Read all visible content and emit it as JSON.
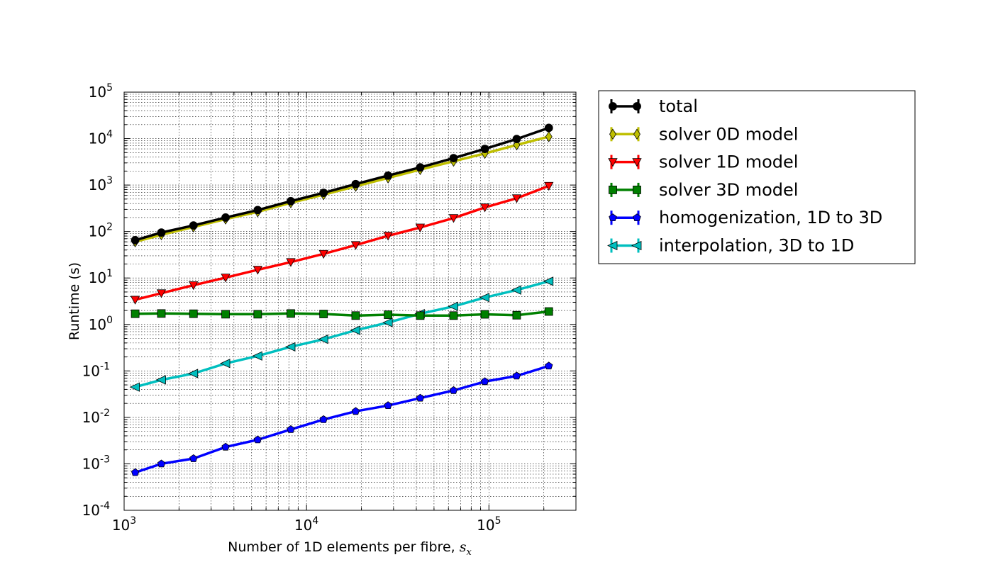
{
  "chart_data": {
    "type": "line",
    "title": "",
    "xlabel": "Number of 1D elements per fibre, ",
    "xlabel_math": "s",
    "xlabel_math_sub": "x",
    "ylabel": "Runtime (s)",
    "x_scale": "log",
    "y_scale": "log",
    "xlim": [
      1000,
      300000
    ],
    "ylim": [
      0.0001,
      100000
    ],
    "grid": true,
    "legend_position": "outside-right-top",
    "x_ticks": [
      {
        "value": 1000,
        "base": "10",
        "exp": "3"
      },
      {
        "value": 10000,
        "base": "10",
        "exp": "4"
      },
      {
        "value": 100000,
        "base": "10",
        "exp": "5"
      }
    ],
    "y_ticks": [
      {
        "value": 100000,
        "base": "10",
        "exp": "5"
      },
      {
        "value": 10000,
        "base": "10",
        "exp": "4"
      },
      {
        "value": 1000,
        "base": "10",
        "exp": "3"
      },
      {
        "value": 100,
        "base": "10",
        "exp": "2"
      },
      {
        "value": 10,
        "base": "10",
        "exp": "1"
      },
      {
        "value": 1,
        "base": "10",
        "exp": "0"
      },
      {
        "value": 0.1,
        "base": "10",
        "exp": "-1"
      },
      {
        "value": 0.01,
        "base": "10",
        "exp": "-2"
      },
      {
        "value": 0.001,
        "base": "10",
        "exp": "-3"
      },
      {
        "value": 0.0001,
        "base": "10",
        "exp": "-4"
      }
    ],
    "x": [
      1150,
      1600,
      2400,
      3600,
      5400,
      8200,
      12400,
      18600,
      28000,
      42000,
      64000,
      95000,
      142000,
      213000
    ],
    "series": [
      {
        "name": "total",
        "color": "#000000",
        "marker": "circle",
        "values": [
          65,
          95,
          135,
          200,
          290,
          450,
          680,
          1050,
          1600,
          2400,
          3800,
          6000,
          9800,
          17000
        ]
      },
      {
        "name": "solver 0D model",
        "color": "#bfbf00",
        "marker": "diamond",
        "values": [
          60,
          85,
          125,
          185,
          265,
          415,
          620,
          940,
          1420,
          2150,
          3250,
          4800,
          7300,
          11000
        ]
      },
      {
        "name": "solver 1D model",
        "color": "#ff0000",
        "marker": "triangle_down",
        "values": [
          3.4,
          4.7,
          7.0,
          10.2,
          15,
          22,
          33,
          51,
          81,
          122,
          195,
          330,
          520,
          960
        ]
      },
      {
        "name": "solver 3D model",
        "color": "#008000",
        "marker": "square",
        "values": [
          1.7,
          1.72,
          1.7,
          1.66,
          1.66,
          1.72,
          1.68,
          1.55,
          1.62,
          1.55,
          1.55,
          1.65,
          1.58,
          1.9
        ]
      },
      {
        "name": "homogenization, 1D to 3D",
        "color": "#0000ff",
        "marker": "pentagon",
        "values": [
          0.00065,
          0.001,
          0.0013,
          0.0023,
          0.0033,
          0.0055,
          0.009,
          0.0135,
          0.018,
          0.026,
          0.038,
          0.059,
          0.078,
          0.128
        ]
      },
      {
        "name": "interpolation, 3D to 1D",
        "color": "#00bfbf",
        "marker": "triangle_left",
        "values": [
          0.045,
          0.064,
          0.088,
          0.145,
          0.21,
          0.33,
          0.48,
          0.75,
          1.1,
          1.7,
          2.45,
          3.8,
          5.5,
          8.5
        ]
      }
    ]
  }
}
